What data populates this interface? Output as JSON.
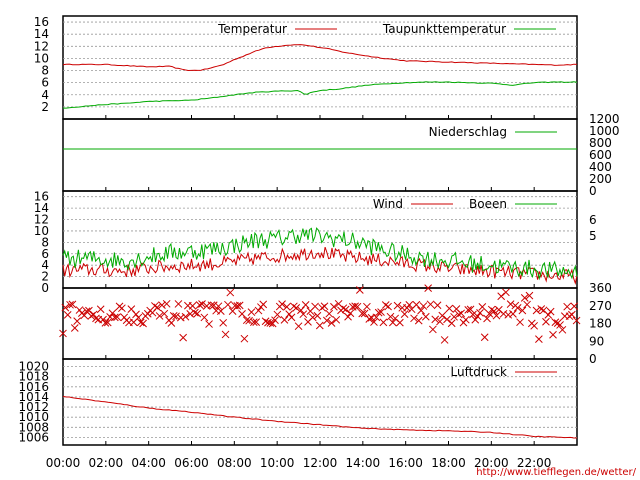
{
  "x_axis": {
    "labels": [
      "00:00",
      "02:00",
      "04:00",
      "06:00",
      "08:00",
      "10:00",
      "12:00",
      "14:00",
      "16:00",
      "18:00",
      "20:00",
      "22:00"
    ],
    "hours": [
      0,
      2,
      4,
      6,
      8,
      10,
      12,
      14,
      16,
      18,
      20,
      22
    ],
    "range_hours": [
      0,
      24
    ]
  },
  "credit": "http://www.tiefflegen.de/wetter/",
  "colors": {
    "red": "#cc0000",
    "green": "#00aa00",
    "grid": "#999999"
  },
  "chart_data": [
    {
      "type": "line",
      "panel": "temperature",
      "ylim": [
        0,
        17
      ],
      "y_ticks": [
        2,
        4,
        6,
        8,
        10,
        12,
        14,
        16
      ],
      "grid": true,
      "legend_placement": "top",
      "series": [
        {
          "name": "Temperatur",
          "color": "#cc0000",
          "x": [
            0,
            1,
            2,
            3,
            4,
            5,
            5.5,
            6,
            6.5,
            7,
            7.5,
            8,
            8.5,
            9,
            9.5,
            10,
            10.5,
            11,
            11.5,
            12,
            12.5,
            13,
            13.5,
            14,
            15,
            16,
            17,
            18,
            19,
            20,
            21,
            22,
            23,
            24
          ],
          "values": [
            9.0,
            9.0,
            9.0,
            8.8,
            8.6,
            8.7,
            8.2,
            8.0,
            8.1,
            8.5,
            9.0,
            9.8,
            10.5,
            11.2,
            11.8,
            12.0,
            12.2,
            12.3,
            12.1,
            11.8,
            11.5,
            11.1,
            10.8,
            10.5,
            10.0,
            9.6,
            9.5,
            9.4,
            9.3,
            9.2,
            9.1,
            9.0,
            8.9,
            9.0
          ]
        },
        {
          "name": "Taupunkttemperatur",
          "color": "#00aa00",
          "x": [
            0,
            1,
            2,
            3,
            4,
            5,
            6,
            7,
            8,
            9,
            10,
            11,
            11.3,
            11.6,
            12,
            13,
            14,
            15,
            16,
            17,
            18,
            19,
            20,
            21,
            22,
            23,
            24
          ],
          "values": [
            1.8,
            2.1,
            2.4,
            2.6,
            2.9,
            3.0,
            3.1,
            3.5,
            4.0,
            4.4,
            4.6,
            4.7,
            4.0,
            4.4,
            4.7,
            5.0,
            5.5,
            5.8,
            6.0,
            6.1,
            6.1,
            6.0,
            5.9,
            5.6,
            6.0,
            6.1,
            6.1
          ]
        }
      ]
    },
    {
      "type": "line",
      "panel": "precipitation",
      "ylim": [
        0,
        1200
      ],
      "y_ticks": [
        0,
        200,
        400,
        600,
        800,
        1000,
        1200
      ],
      "series": [
        {
          "name": "Niederschlag",
          "color": "#00aa00",
          "x": [
            0,
            24
          ],
          "values": [
            700,
            700
          ]
        }
      ]
    },
    {
      "type": "line",
      "panel": "wind",
      "ylim": [
        0,
        17
      ],
      "y_ticks": [
        0,
        2,
        4,
        6,
        8,
        10,
        12,
        14,
        16
      ],
      "y2_ticks": [
        5,
        6
      ],
      "series": [
        {
          "name": "Wind",
          "color": "#cc0000",
          "x": [
            0,
            1,
            2,
            3,
            4,
            5,
            6,
            7,
            8,
            9,
            10,
            11,
            12,
            13,
            14,
            15,
            16,
            17,
            18,
            19,
            20,
            21,
            22,
            23,
            24
          ],
          "values": [
            3.0,
            3.2,
            3.1,
            3.0,
            3.5,
            3.8,
            4.0,
            4.2,
            4.6,
            5.2,
            5.6,
            6.0,
            6.4,
            5.5,
            5.2,
            4.8,
            4.3,
            3.9,
            3.4,
            3.1,
            2.9,
            2.6,
            2.4,
            2.2,
            2.0
          ]
        },
        {
          "name": "Boeen",
          "color": "#00aa00",
          "x": [
            0,
            1,
            2,
            3,
            4,
            5,
            6,
            7,
            8,
            9,
            10,
            11,
            12,
            13,
            14,
            15,
            16,
            17,
            18,
            19,
            20,
            21,
            22,
            23,
            24
          ],
          "values": [
            5.0,
            5.2,
            5.0,
            4.8,
            5.5,
            6.2,
            6.4,
            6.8,
            7.5,
            8.4,
            8.6,
            9.4,
            9.0,
            8.6,
            7.8,
            6.6,
            5.8,
            5.2,
            4.8,
            4.3,
            4.0,
            3.6,
            3.3,
            3.0,
            2.8
          ]
        }
      ]
    },
    {
      "type": "scatter",
      "panel": "wind_direction",
      "ylim": [
        0,
        360
      ],
      "y_ticks": [
        0,
        90,
        180,
        270,
        360
      ],
      "marker": "x",
      "color": "#cc0000",
      "typical_range_degrees": [
        180,
        280
      ]
    },
    {
      "type": "line",
      "panel": "pressure",
      "ylim": [
        1004.5,
        1021.5
      ],
      "y_ticks": [
        1006,
        1008,
        1010,
        1012,
        1014,
        1016,
        1018,
        1020
      ],
      "series": [
        {
          "name": "Luftdruck",
          "color": "#cc0000",
          "x": [
            0,
            2,
            4,
            6,
            8,
            10,
            12,
            14,
            16,
            18,
            20,
            22,
            24
          ],
          "values": [
            1014.1,
            1013.0,
            1011.8,
            1011.0,
            1010.0,
            1009.2,
            1008.5,
            1007.8,
            1007.5,
            1007.3,
            1007.0,
            1006.2,
            1005.9
          ]
        }
      ]
    }
  ]
}
